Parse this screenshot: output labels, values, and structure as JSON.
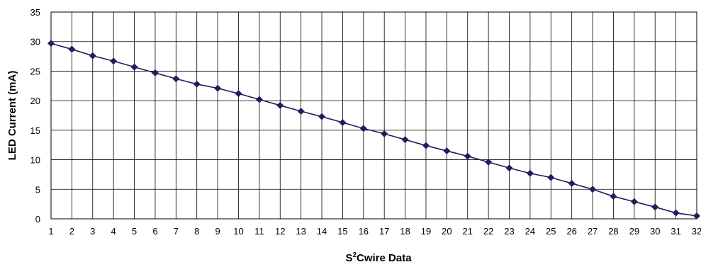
{
  "chart_data": {
    "type": "line",
    "xlabel_main": "S",
    "xlabel_sup": "2",
    "xlabel_rest": "Cwire Data",
    "ylabel": "LED Current (mA)",
    "xlim": [
      1,
      32
    ],
    "ylim": [
      0,
      35
    ],
    "yticks": [
      0,
      5,
      10,
      15,
      20,
      25,
      30,
      35
    ],
    "grid": true,
    "legend": "none",
    "line_color": "#1f1f5c",
    "marker": "diamond",
    "series": [
      {
        "x": [
          1,
          2,
          3,
          4,
          5,
          6,
          7,
          8,
          9,
          10,
          11,
          12,
          13,
          14,
          15,
          16,
          17,
          18,
          19,
          20,
          21,
          22,
          23,
          24,
          25,
          26,
          27,
          28,
          29,
          30,
          31,
          32
        ],
        "values": [
          29.7,
          28.7,
          27.6,
          26.7,
          25.7,
          24.7,
          23.7,
          22.8,
          22.1,
          21.2,
          20.2,
          19.2,
          18.2,
          17.3,
          16.3,
          15.3,
          14.4,
          13.4,
          12.4,
          11.5,
          10.6,
          9.6,
          8.6,
          7.7,
          7.0,
          6.0,
          5.0,
          3.8,
          2.9,
          2.0,
          1.0,
          0.5
        ]
      }
    ]
  }
}
